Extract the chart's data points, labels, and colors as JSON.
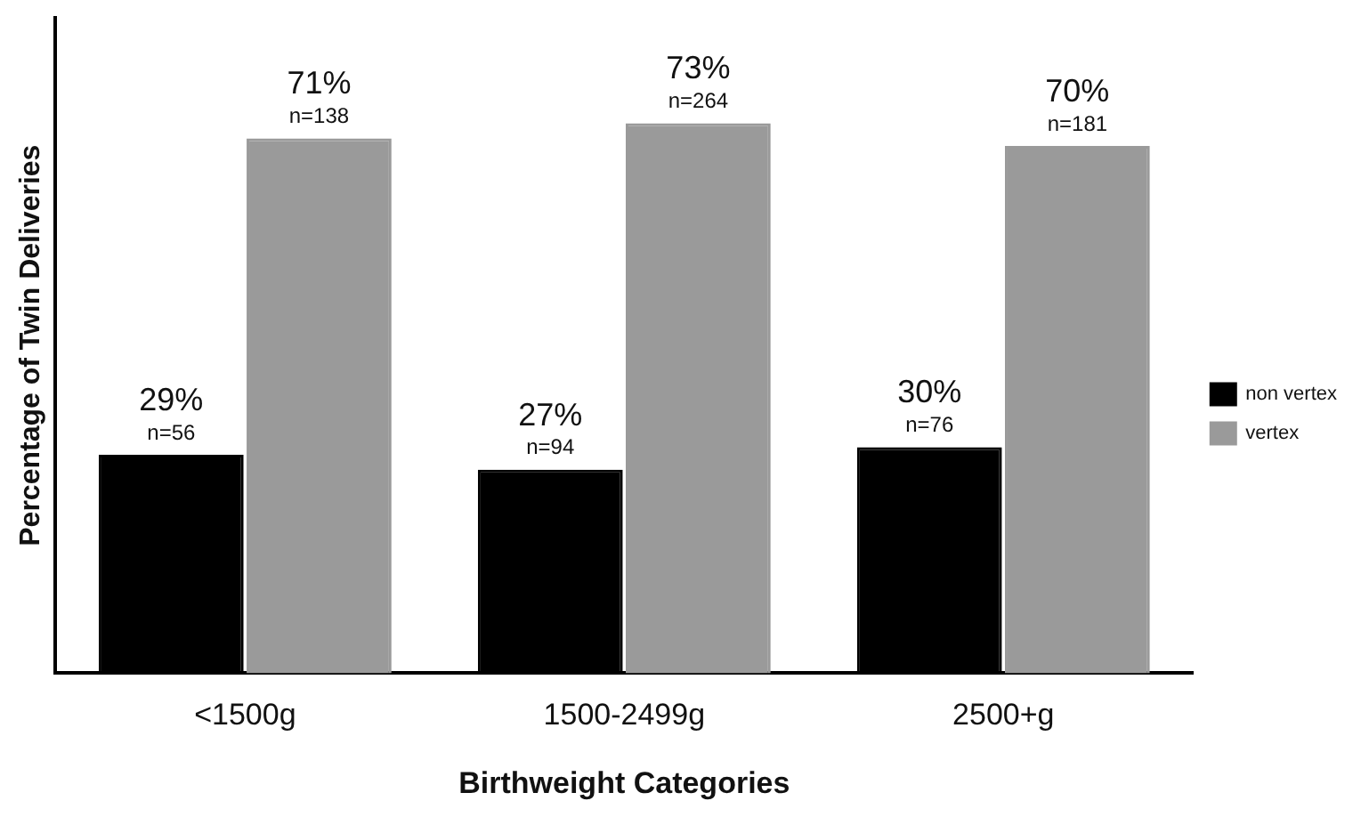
{
  "chart_data": {
    "type": "bar",
    "xlabel": "Birthweight Categories",
    "ylabel": "Percentage of Twin Deliveries",
    "categories": [
      "<1500g",
      "1500-2499g",
      "2500+g"
    ],
    "series": [
      {
        "name": "non vertex",
        "color": "#000000",
        "values": [
          29,
          27,
          30
        ],
        "value_labels": [
          "29%\nn=56",
          "27%\nn=94",
          "30%\nn=76"
        ]
      },
      {
        "name": "vertex",
        "color": "#9a9a9a",
        "values": [
          71,
          73,
          70
        ],
        "value_labels": [
          "71%\nn=138",
          "73%\nn=264",
          "70%\nn=181"
        ]
      }
    ],
    "ylim": [
      0,
      87
    ],
    "tick_labels": "x",
    "legend": "right",
    "grid": false
  }
}
